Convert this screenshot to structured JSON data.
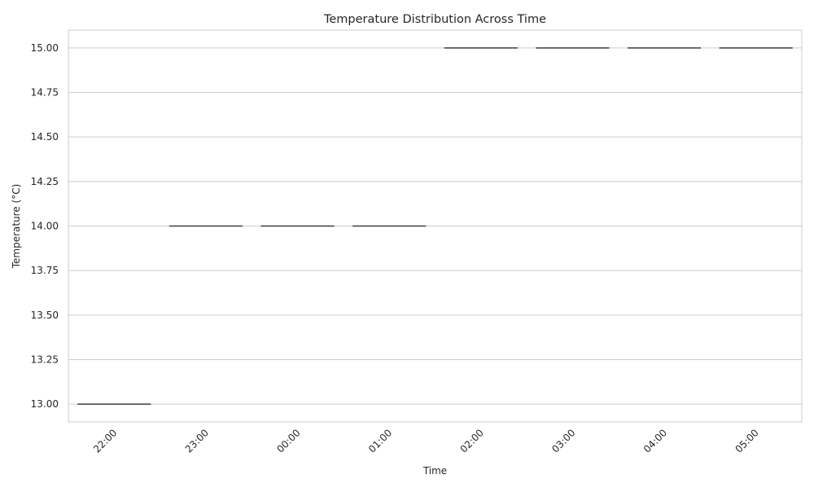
{
  "chart_data": {
    "type": "box",
    "title": "Temperature Distribution Across Time",
    "xlabel": "Time",
    "ylabel": "Temperature (°C)",
    "categories": [
      "22:00",
      "23:00",
      "00:00",
      "01:00",
      "02:00",
      "03:00",
      "04:00",
      "05:00"
    ],
    "values": [
      13,
      14,
      14,
      14,
      15,
      15,
      15,
      15
    ],
    "ylim": [
      12.9,
      15.1
    ],
    "yticks": [
      13.0,
      13.25,
      13.5,
      13.75,
      14.0,
      14.25,
      14.5,
      14.75,
      15.0
    ],
    "ytick_labels": [
      "13.00",
      "13.25",
      "13.50",
      "13.75",
      "14.00",
      "14.25",
      "14.50",
      "14.75",
      "15.00"
    ],
    "xtick_rotation": 45,
    "grid": "horizontal",
    "legend": "none",
    "colors": {
      "grid": "#cccccc",
      "frame": "#cccccc",
      "median": "#3d3d3d",
      "text": "#262626"
    }
  }
}
